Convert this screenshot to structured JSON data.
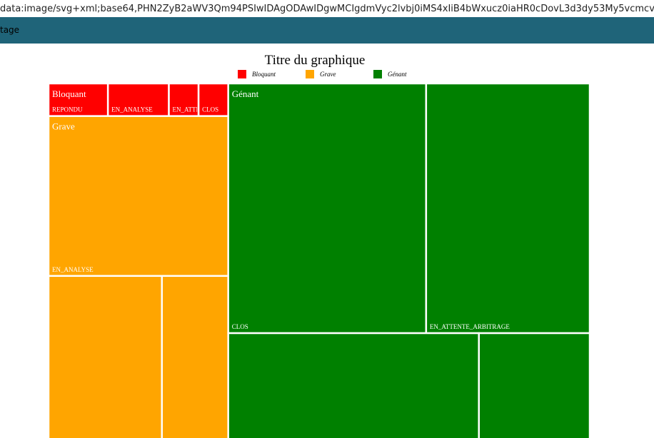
{
  "browser": {
    "address": "data:image/svg+xml;base64,PHN2ZyB2aWV3Qm94PSIwIDAgODAwIDgwMCIgdmVyc2lvbj0iMS4xIiB4bWxucz0iaHR0cDovL3d3dy53My5vcmcvMjA...",
    "toolbar": "tage"
  },
  "chart_data": {
    "type": "treemap",
    "title": "Titre du graphique",
    "series": [
      {
        "name": "Bloquant",
        "color": "#ff0000",
        "categories": [
          "REPONDU",
          "EN_ANALYSE",
          "EN_ATTENTE_ARBITRAGE",
          "CLOS"
        ],
        "values": [
          3.8,
          3.9,
          1.9,
          1.9
        ]
      },
      {
        "name": "Grave",
        "color": "#ffa500",
        "categories": [
          "EN_ANALYSE",
          null,
          null
        ],
        "values": [
          56.4,
          38.6,
          22.6
        ]
      },
      {
        "name": "Génant",
        "color": "#008000",
        "categories": [
          "CLOS",
          "EN_ATTENTE_ARBITRAGE",
          null,
          null
        ],
        "values": [
          97,
          80.2,
          57.2,
          25.3
        ]
      }
    ]
  }
}
